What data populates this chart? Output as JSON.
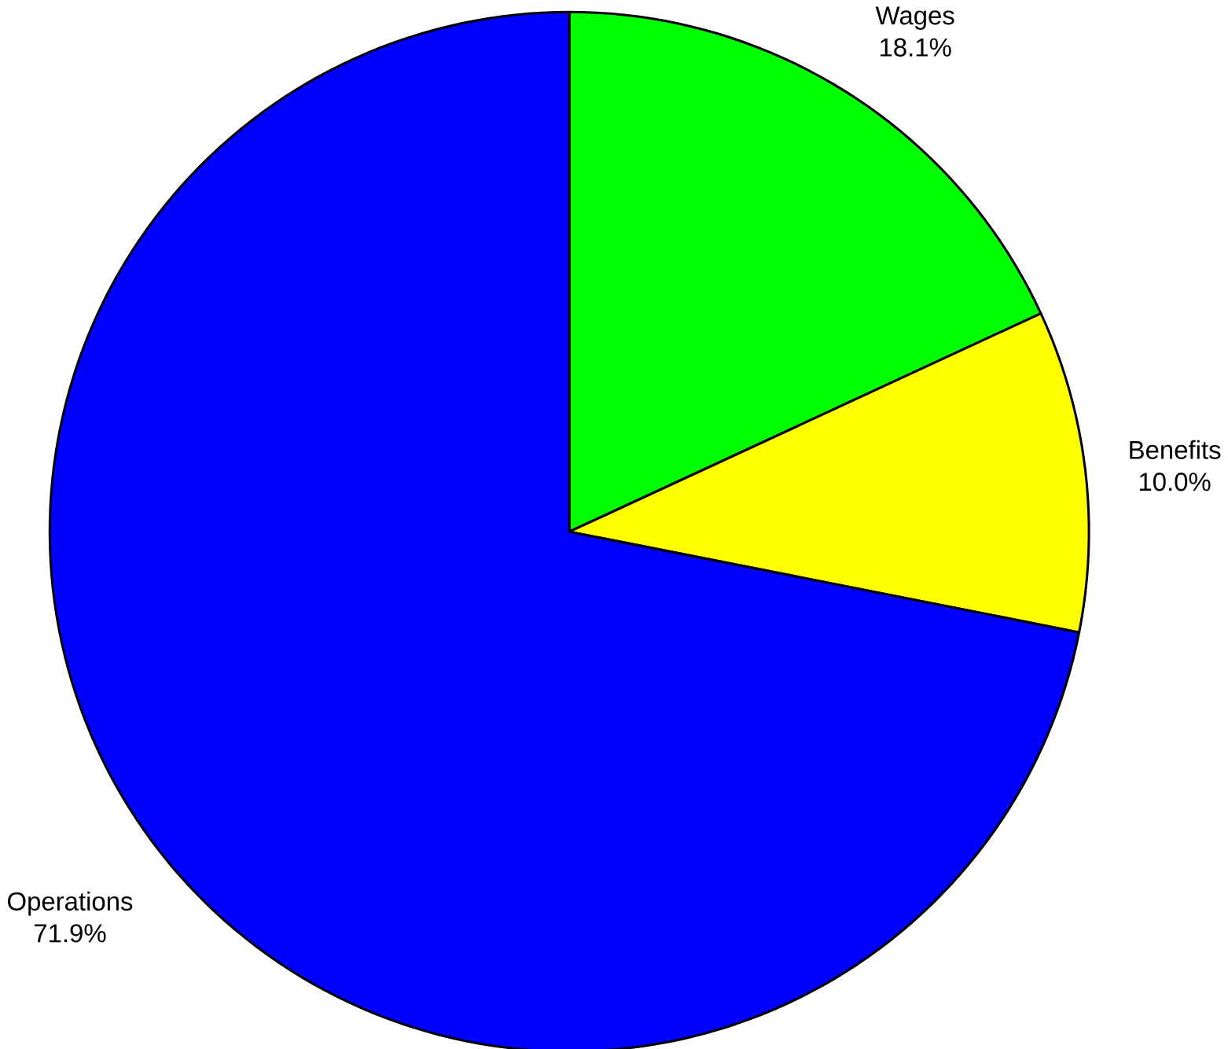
{
  "chart_data": {
    "type": "pie",
    "categories": [
      "Wages",
      "Benefits",
      "Operations"
    ],
    "values": [
      18.1,
      10.0,
      71.9
    ],
    "colors": [
      "#00ff00",
      "#ffff00",
      "#0000ff"
    ],
    "value_labels": [
      "18.1%",
      "10.0%",
      "71.9%"
    ]
  }
}
